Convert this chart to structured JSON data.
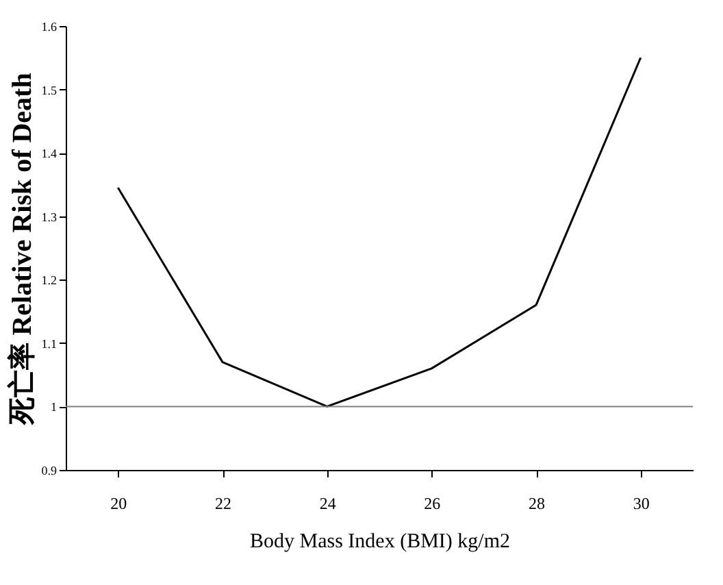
{
  "chart_data": {
    "type": "line",
    "xlabel": "Body Mass Index (BMI) kg/m2",
    "ylabel": "死亡率 Relative Risk of Death",
    "categories": [
      "20",
      "22",
      "24",
      "26",
      "28",
      "30"
    ],
    "series": [
      {
        "color": "#000000",
        "values": [
          1.345,
          1.07,
          1.0,
          1.06,
          1.16,
          1.55
        ]
      }
    ],
    "ylim": [
      0.9,
      1.6
    ],
    "yticks": [
      0.9,
      1,
      1.1,
      1.2,
      1.3,
      1.4,
      1.5,
      1.6
    ],
    "ref_lines": [
      {
        "axis": "y",
        "value": 1,
        "color": "#808080"
      }
    ],
    "grid": false,
    "marker": "none",
    "line_style": "solid"
  }
}
